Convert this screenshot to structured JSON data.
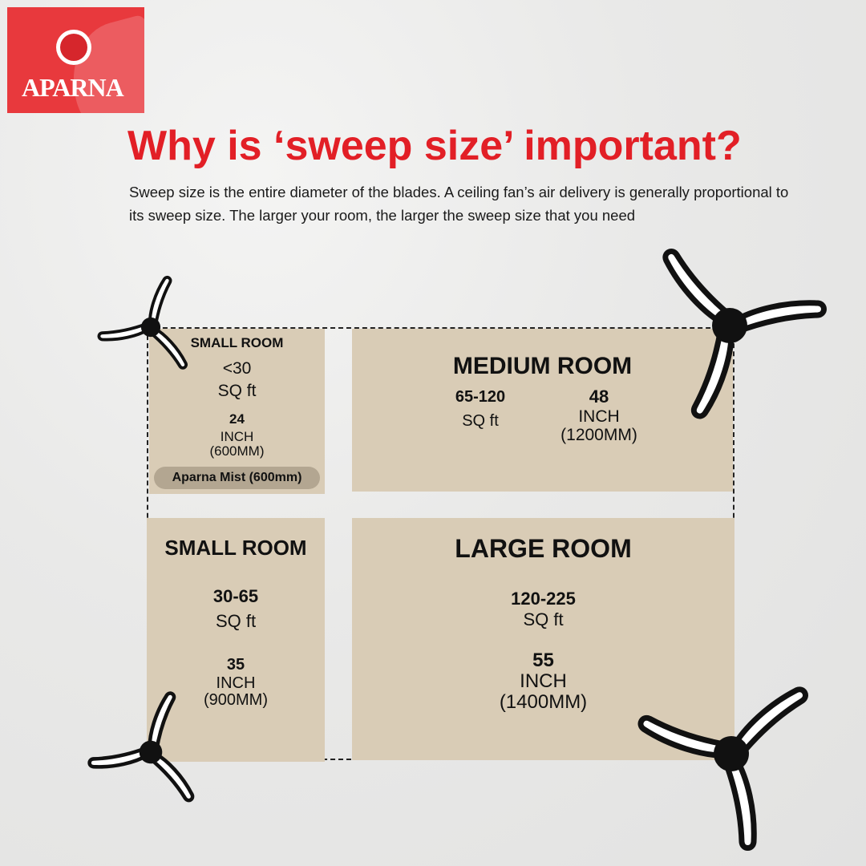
{
  "brand": {
    "name": "APARNA",
    "color": "#e8393d"
  },
  "title": "Why is ‘sweep size’ important?",
  "description": "Sweep size is the entire diameter of the blades. A ceiling fan’s air delivery is generally proportional to its sweep size. The larger your room, the larger the sweep size that you need",
  "colors": {
    "title": "#e21f26",
    "box": "#d9ccb6",
    "badge": "#b3a691"
  },
  "rooms": [
    {
      "name": "SMALL ROOM",
      "area": "<30",
      "area_unit": "SQ ft",
      "sweep": "24",
      "sweep_unit": "INCH",
      "sweep_mm": "(600MM)",
      "product": "Aparna Mist (600mm)"
    },
    {
      "name": "MEDIUM ROOM",
      "area": "65-120",
      "area_unit": "SQ ft",
      "sweep": "48",
      "sweep_unit": "INCH",
      "sweep_mm": "(1200MM)"
    },
    {
      "name": "SMALL ROOM",
      "area": "30-65",
      "area_unit": "SQ ft",
      "sweep": "35",
      "sweep_unit": "INCH",
      "sweep_mm": "(900MM)"
    },
    {
      "name": "LARGE ROOM",
      "area": "120-225",
      "area_unit": "SQ ft",
      "sweep": "55",
      "sweep_unit": "INCH",
      "sweep_mm": "(1400MM)"
    }
  ],
  "icons": [
    "ceiling-fan-icon"
  ]
}
